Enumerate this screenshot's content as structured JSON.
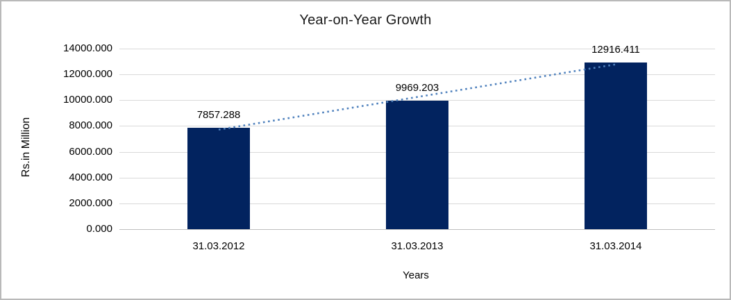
{
  "chart": {
    "title": "Year-on-Year Growth",
    "y_axis_title": "Rs.in Million",
    "x_axis_title": "Years",
    "y_tick_labels": [
      "14000.000",
      "12000.000",
      "10000.000",
      "8000.000",
      "6000.000",
      "4000.000",
      "2000.000",
      "0.000"
    ],
    "categories": [
      "31.03.2012",
      "31.03.2013",
      "31.03.2014"
    ],
    "data_labels": [
      "7857.288",
      "9969.203",
      "12916.411"
    ]
  },
  "chart_data": {
    "type": "bar",
    "title": "Year-on-Year Growth",
    "xlabel": "Years",
    "ylabel": "Rs.in Million",
    "categories": [
      "31.03.2012",
      "31.03.2013",
      "31.03.2014"
    ],
    "values": [
      7857.288,
      9969.203,
      12916.411
    ],
    "ylim": [
      0,
      14000
    ],
    "y_tick_step": 2000,
    "grid": true,
    "legend": false,
    "bar_color": "#02235F",
    "trendline": {
      "type": "linear",
      "style": "dotted",
      "color": "#4F81BD"
    }
  },
  "colors": {
    "bar": "#02235F",
    "trendline": "#4F81BD",
    "gridline": "#D9D9D9",
    "axis_line": "#BFBFBF",
    "frame_border": "#B9B9B9",
    "text": "#000000",
    "background": "#FFFFFF"
  }
}
